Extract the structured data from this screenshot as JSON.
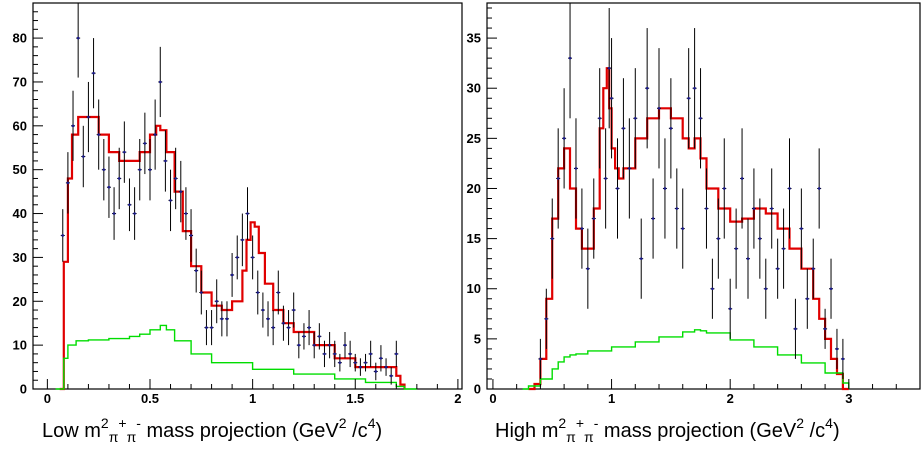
{
  "colors": {
    "fit": "#e00000",
    "background": "#00dd00",
    "data": "#1a1a8c",
    "error": "#000000"
  },
  "chart_data": [
    {
      "type": "line",
      "xlabel_parts": {
        "pre": "Low m",
        "sup1": "2",
        "sub1": "π",
        "sup2": "+",
        "sub2": "π",
        "sup3": "-",
        "mid": " mass projection (GeV",
        "sup4": "2",
        "post": " /c",
        "sup5": "4",
        "end": ")"
      },
      "xlim": [
        -0.07,
        2.02
      ],
      "ylim": [
        0,
        88
      ],
      "xticks": [
        0,
        0.5,
        1,
        1.5,
        2
      ],
      "xtick_labels": [
        "0",
        "0.5",
        "1",
        "1.5",
        "2"
      ],
      "yticks": [
        0,
        10,
        20,
        30,
        40,
        50,
        60,
        70,
        80
      ],
      "ytick_labels": [
        "0",
        "10",
        "20",
        "30",
        "40",
        "50",
        "60",
        "70",
        "80"
      ],
      "series": [
        {
          "role": "fit",
          "style": "step",
          "x": [
            0.06,
            0.08,
            0.1,
            0.12,
            0.15,
            0.2,
            0.25,
            0.3,
            0.35,
            0.4,
            0.45,
            0.5,
            0.53,
            0.55,
            0.58,
            0.62,
            0.66,
            0.7,
            0.75,
            0.8,
            0.85,
            0.9,
            0.95,
            0.97,
            0.99,
            1.01,
            1.03,
            1.06,
            1.1,
            1.15,
            1.2,
            1.3,
            1.4,
            1.5,
            1.6,
            1.65,
            1.7,
            1.72,
            1.74
          ],
          "y": [
            0,
            29,
            48,
            58,
            62,
            62,
            58,
            54,
            52,
            52,
            54,
            58,
            60,
            59,
            54,
            45,
            36,
            28,
            22,
            19,
            18,
            20,
            27,
            34,
            38,
            37,
            31,
            24,
            18,
            15,
            13,
            10,
            7,
            5,
            5,
            5,
            3,
            1,
            0
          ]
        },
        {
          "role": "background",
          "style": "step",
          "x": [
            0.04,
            0.08,
            0.1,
            0.14,
            0.2,
            0.3,
            0.4,
            0.45,
            0.5,
            0.55,
            0.58,
            0.62,
            0.7,
            0.8,
            1.0,
            1.2,
            1.4,
            1.55,
            1.7,
            1.74,
            1.8
          ],
          "y": [
            0,
            7,
            10,
            11,
            11.2,
            11.5,
            12,
            12.5,
            13.5,
            14.5,
            13.5,
            11,
            8,
            6,
            4.5,
            3.4,
            2.3,
            1.5,
            0.6,
            0,
            0
          ]
        },
        {
          "role": "data",
          "style": "errorbar",
          "x": [
            0.075,
            0.1,
            0.125,
            0.15,
            0.175,
            0.2,
            0.225,
            0.25,
            0.275,
            0.3,
            0.325,
            0.35,
            0.375,
            0.4,
            0.425,
            0.45,
            0.475,
            0.5,
            0.525,
            0.55,
            0.575,
            0.6,
            0.625,
            0.65,
            0.675,
            0.7,
            0.725,
            0.75,
            0.775,
            0.8,
            0.825,
            0.85,
            0.875,
            0.9,
            0.925,
            0.95,
            0.975,
            1.0,
            1.025,
            1.05,
            1.075,
            1.1,
            1.125,
            1.15,
            1.175,
            1.2,
            1.225,
            1.25,
            1.275,
            1.3,
            1.325,
            1.35,
            1.375,
            1.4,
            1.425,
            1.45,
            1.475,
            1.5,
            1.525,
            1.55,
            1.575,
            1.6,
            1.625,
            1.65,
            1.675,
            1.7
          ],
          "y": [
            35,
            47,
            60,
            80,
            53,
            62,
            72,
            58,
            50,
            46,
            40,
            48,
            54,
            42,
            40,
            50,
            56,
            50,
            58,
            70,
            52,
            43,
            48,
            45,
            40,
            35,
            27,
            22,
            14,
            14,
            20,
            16,
            16,
            26,
            30,
            34,
            40,
            30,
            22,
            18,
            16,
            14,
            22,
            15,
            14,
            18,
            10,
            12,
            14,
            10,
            12,
            8,
            10,
            8,
            6,
            10,
            8,
            6,
            5,
            6,
            8,
            4,
            7,
            5,
            3,
            8
          ],
          "err": [
            6,
            7,
            8,
            9,
            7,
            8,
            8,
            8,
            7,
            7,
            6,
            7,
            7,
            6,
            6,
            7,
            7,
            7,
            8,
            8,
            7,
            7,
            7,
            7,
            6,
            6,
            5,
            5,
            4,
            4,
            5,
            4,
            4,
            5,
            5,
            6,
            6,
            5,
            5,
            4,
            4,
            4,
            5,
            4,
            4,
            4,
            3,
            3,
            4,
            3,
            3,
            3,
            3,
            3,
            2,
            3,
            3,
            2,
            2,
            2,
            3,
            2,
            3,
            2,
            2,
            3
          ]
        }
      ]
    },
    {
      "type": "line",
      "xlabel_parts": {
        "pre": "High m",
        "sup1": "2",
        "sub1": "π",
        "sup2": "+",
        "sub2": "π",
        "sup3": "-",
        "mid": " mass projection (GeV",
        "sup4": "2",
        "post": " /c",
        "sup5": "4",
        "end": ")"
      },
      "xlim": [
        -0.05,
        3.6
      ],
      "ylim": [
        0,
        38.5
      ],
      "xticks": [
        0,
        1,
        2,
        3
      ],
      "xtick_labels": [
        "0",
        "1",
        "2",
        "3"
      ],
      "yticks": [
        0,
        5,
        10,
        15,
        20,
        25,
        30,
        35
      ],
      "ytick_labels": [
        "0",
        "5",
        "10",
        "15",
        "20",
        "25",
        "30",
        "35"
      ],
      "series": [
        {
          "role": "fit",
          "style": "step",
          "x": [
            0.3,
            0.35,
            0.4,
            0.45,
            0.5,
            0.55,
            0.6,
            0.65,
            0.7,
            0.75,
            0.8,
            0.85,
            0.9,
            0.93,
            0.96,
            0.98,
            1.0,
            1.03,
            1.06,
            1.1,
            1.2,
            1.3,
            1.4,
            1.5,
            1.6,
            1.65,
            1.7,
            1.75,
            1.8,
            1.9,
            2.0,
            2.1,
            2.2,
            2.3,
            2.4,
            2.5,
            2.6,
            2.7,
            2.75,
            2.8,
            2.85,
            2.9,
            2.95,
            3.0
          ],
          "y": [
            0,
            0.5,
            3,
            9,
            17,
            22,
            24,
            20,
            16,
            14,
            14,
            18,
            26,
            30,
            32,
            28,
            24,
            22,
            21,
            22,
            25,
            27,
            28,
            27,
            25,
            24,
            25,
            23,
            20,
            18,
            16.7,
            17,
            18,
            17.5,
            16,
            14,
            12,
            9,
            7,
            5,
            3,
            1.5,
            0,
            0
          ]
        },
        {
          "role": "background",
          "style": "step",
          "x": [
            0.25,
            0.3,
            0.4,
            0.5,
            0.55,
            0.6,
            0.65,
            0.7,
            0.8,
            1.0,
            1.2,
            1.4,
            1.6,
            1.7,
            1.75,
            1.8,
            2.0,
            2.2,
            2.4,
            2.6,
            2.8,
            2.95,
            3.0
          ],
          "y": [
            0,
            0.3,
            1,
            2,
            2.7,
            3.2,
            3.4,
            3.5,
            3.8,
            4.2,
            4.7,
            5.2,
            5.7,
            5.9,
            5.8,
            5.6,
            4.9,
            4.2,
            3.4,
            2.6,
            1.6,
            0.6,
            0
          ]
        },
        {
          "role": "data",
          "style": "errorbar",
          "x": [
            0.4,
            0.45,
            0.5,
            0.55,
            0.6,
            0.65,
            0.7,
            0.75,
            0.8,
            0.85,
            0.9,
            0.95,
            0.98,
            1.0,
            1.05,
            1.1,
            1.15,
            1.2,
            1.25,
            1.3,
            1.35,
            1.4,
            1.45,
            1.5,
            1.55,
            1.6,
            1.65,
            1.7,
            1.75,
            1.8,
            1.85,
            1.9,
            1.95,
            2.0,
            2.05,
            2.1,
            2.15,
            2.2,
            2.25,
            2.3,
            2.35,
            2.4,
            2.45,
            2.5,
            2.55,
            2.6,
            2.65,
            2.7,
            2.75,
            2.8,
            2.85,
            2.9,
            2.95
          ],
          "y": [
            3,
            7,
            15,
            21,
            25,
            33,
            22,
            16,
            12,
            17,
            27,
            21,
            32,
            29,
            20,
            26,
            22,
            27,
            13,
            30,
            17,
            28,
            20,
            26,
            18,
            16,
            29,
            30,
            27,
            18,
            10,
            15,
            20,
            8,
            14,
            21,
            13,
            18,
            15,
            10,
            18,
            12,
            14,
            20,
            6,
            16,
            9,
            12,
            20,
            6,
            10,
            4,
            3
          ],
          "err": [
            2,
            3,
            4,
            5,
            5,
            6,
            5,
            4,
            4,
            4,
            5,
            5,
            6,
            6,
            5,
            5,
            5,
            5,
            4,
            6,
            4,
            6,
            5,
            5,
            4,
            4,
            5,
            6,
            5,
            4,
            3,
            4,
            5,
            3,
            4,
            5,
            4,
            4,
            4,
            3,
            4,
            3,
            4,
            5,
            3,
            4,
            3,
            3,
            4,
            2,
            3,
            2,
            2
          ]
        }
      ]
    }
  ]
}
